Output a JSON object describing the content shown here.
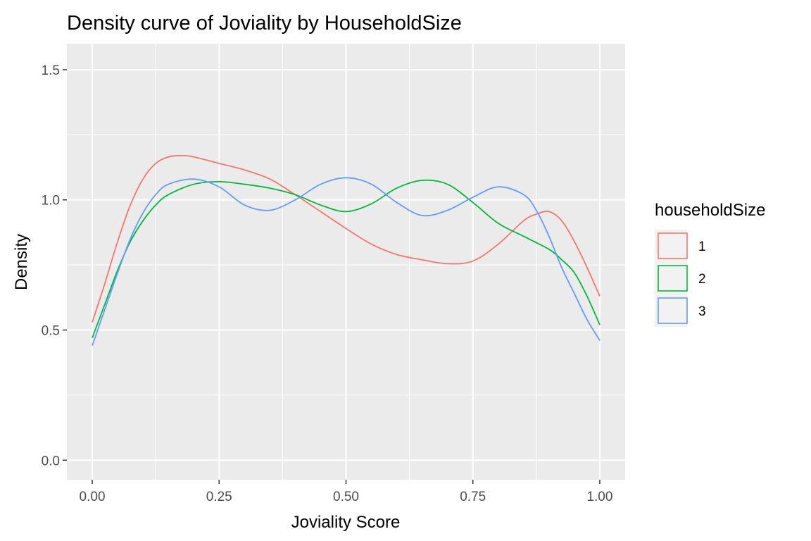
{
  "chart_data": {
    "type": "line",
    "title": "Density curve of Joviality by HouseholdSize",
    "xlabel": "Joviality Score",
    "ylabel": "Density",
    "xlim": [
      -0.05,
      1.05
    ],
    "ylim": [
      -0.075,
      1.6
    ],
    "x_ticks": [
      0,
      0.25,
      0.5,
      0.75,
      1
    ],
    "x_tick_labels": [
      "0.00",
      "0.25",
      "0.50",
      "0.75",
      "1.00"
    ],
    "y_ticks": [
      0,
      0.5,
      1,
      1.5
    ],
    "y_tick_labels": [
      "0.0",
      "0.5",
      "1.0",
      "1.5"
    ],
    "grid": true,
    "background": "#ebebeb",
    "legend": {
      "title": "householdSize",
      "position": "right"
    },
    "series": [
      {
        "name": "1",
        "color": "#f8766d",
        "x": [
          0,
          0.025,
          0.05,
          0.075,
          0.1,
          0.125,
          0.15,
          0.175,
          0.2,
          0.25,
          0.3,
          0.35,
          0.4,
          0.45,
          0.5,
          0.55,
          0.6,
          0.65,
          0.7,
          0.75,
          0.8,
          0.85,
          0.875,
          0.9,
          0.925,
          0.95,
          0.975,
          1.0
        ],
        "values": [
          0.53,
          0.68,
          0.84,
          0.98,
          1.08,
          1.14,
          1.165,
          1.17,
          1.165,
          1.14,
          1.115,
          1.08,
          1.02,
          0.955,
          0.89,
          0.83,
          0.79,
          0.77,
          0.755,
          0.765,
          0.83,
          0.92,
          0.945,
          0.955,
          0.92,
          0.84,
          0.74,
          0.63
        ]
      },
      {
        "name": "2",
        "color": "#00ba38",
        "x": [
          0,
          0.025,
          0.05,
          0.075,
          0.1,
          0.125,
          0.15,
          0.2,
          0.25,
          0.3,
          0.35,
          0.4,
          0.45,
          0.5,
          0.55,
          0.6,
          0.65,
          0.7,
          0.75,
          0.8,
          0.85,
          0.9,
          0.925,
          0.95,
          0.975,
          1.0
        ],
        "values": [
          0.47,
          0.6,
          0.73,
          0.84,
          0.92,
          0.98,
          1.02,
          1.06,
          1.07,
          1.06,
          1.045,
          1.02,
          0.98,
          0.955,
          0.985,
          1.045,
          1.075,
          1.06,
          0.99,
          0.91,
          0.86,
          0.81,
          0.77,
          0.72,
          0.63,
          0.52
        ]
      },
      {
        "name": "3",
        "color": "#619cff",
        "x": [
          0,
          0.025,
          0.05,
          0.075,
          0.1,
          0.125,
          0.15,
          0.2,
          0.25,
          0.3,
          0.35,
          0.4,
          0.45,
          0.5,
          0.55,
          0.6,
          0.65,
          0.7,
          0.75,
          0.8,
          0.85,
          0.875,
          0.9,
          0.925,
          0.95,
          0.975,
          1.0
        ],
        "values": [
          0.44,
          0.58,
          0.72,
          0.85,
          0.95,
          1.02,
          1.06,
          1.08,
          1.05,
          0.98,
          0.96,
          1.0,
          1.06,
          1.085,
          1.06,
          0.99,
          0.94,
          0.96,
          1.01,
          1.05,
          1.02,
          0.96,
          0.86,
          0.74,
          0.64,
          0.54,
          0.46
        ]
      }
    ]
  }
}
